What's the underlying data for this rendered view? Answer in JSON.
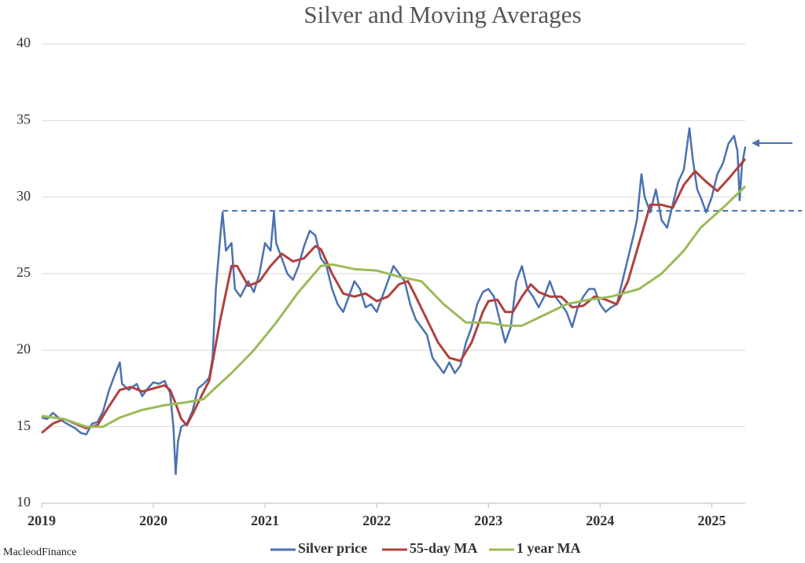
{
  "chart_data": {
    "type": "line",
    "title": "Silver and Moving Averages",
    "source": "MacleodFinance",
    "xlim": [
      2019,
      2025.3
    ],
    "xticks": [
      2019,
      2020,
      2021,
      2022,
      2023,
      2024,
      2025
    ],
    "ylim": [
      10,
      40
    ],
    "yticks": [
      10,
      15,
      20,
      25,
      30,
      35,
      40
    ],
    "grid": true,
    "legend": "bottom",
    "reference_line": {
      "value": 29.1,
      "x_start": 2020.62,
      "color": "#4a72b0"
    },
    "series": [
      {
        "name": "Silver price",
        "color": "#4a72b0",
        "x": [
          2019.0,
          2019.05,
          2019.1,
          2019.15,
          2019.2,
          2019.25,
          2019.3,
          2019.35,
          2019.4,
          2019.45,
          2019.5,
          2019.55,
          2019.6,
          2019.65,
          2019.7,
          2019.72,
          2019.78,
          2019.85,
          2019.9,
          2019.95,
          2020.0,
          2020.05,
          2020.1,
          2020.15,
          2020.18,
          2020.2,
          2020.22,
          2020.25,
          2020.3,
          2020.35,
          2020.4,
          2020.45,
          2020.5,
          2020.53,
          2020.56,
          2020.6,
          2020.62,
          2020.65,
          2020.7,
          2020.73,
          2020.78,
          2020.85,
          2020.9,
          2020.95,
          2021.0,
          2021.05,
          2021.08,
          2021.1,
          2021.15,
          2021.2,
          2021.25,
          2021.3,
          2021.35,
          2021.4,
          2021.45,
          2021.5,
          2021.55,
          2021.6,
          2021.65,
          2021.7,
          2021.75,
          2021.8,
          2021.85,
          2021.9,
          2021.95,
          2022.0,
          2022.05,
          2022.1,
          2022.15,
          2022.2,
          2022.25,
          2022.3,
          2022.35,
          2022.4,
          2022.45,
          2022.5,
          2022.55,
          2022.6,
          2022.65,
          2022.7,
          2022.75,
          2022.8,
          2022.85,
          2022.9,
          2022.95,
          2023.0,
          2023.05,
          2023.1,
          2023.15,
          2023.2,
          2023.25,
          2023.3,
          2023.35,
          2023.4,
          2023.45,
          2023.5,
          2023.55,
          2023.6,
          2023.65,
          2023.7,
          2023.75,
          2023.8,
          2023.85,
          2023.9,
          2023.95,
          2024.0,
          2024.05,
          2024.1,
          2024.15,
          2024.2,
          2024.25,
          2024.3,
          2024.33,
          2024.37,
          2024.4,
          2024.45,
          2024.5,
          2024.55,
          2024.6,
          2024.65,
          2024.7,
          2024.75,
          2024.8,
          2024.83,
          2024.87,
          2024.9,
          2024.95,
          2025.0,
          2025.05,
          2025.1,
          2025.15,
          2025.2,
          2025.23,
          2025.25,
          2025.27,
          2025.3
        ],
        "values": [
          15.6,
          15.5,
          15.9,
          15.6,
          15.3,
          15.1,
          14.9,
          14.6,
          14.5,
          15.2,
          15.3,
          16.0,
          17.3,
          18.3,
          19.2,
          17.8,
          17.4,
          17.8,
          17.0,
          17.5,
          17.9,
          17.8,
          18.0,
          17.2,
          15.0,
          11.9,
          14.0,
          15.0,
          15.2,
          16.0,
          17.5,
          17.8,
          18.2,
          19.5,
          24.0,
          27.5,
          29.0,
          26.5,
          27.0,
          24.0,
          23.5,
          24.5,
          23.8,
          25.0,
          27.0,
          26.5,
          29.0,
          27.0,
          26.0,
          25.0,
          24.6,
          25.5,
          26.8,
          27.8,
          27.5,
          26.0,
          25.5,
          24.0,
          23.0,
          22.5,
          23.5,
          24.5,
          24.0,
          22.8,
          23.0,
          22.5,
          23.5,
          24.5,
          25.5,
          25.0,
          24.5,
          23.0,
          22.0,
          21.5,
          21.0,
          19.5,
          19.0,
          18.5,
          19.2,
          18.5,
          19.0,
          20.5,
          21.5,
          23.0,
          23.8,
          24.0,
          23.5,
          22.0,
          20.5,
          21.5,
          24.5,
          25.5,
          24.0,
          23.5,
          22.8,
          23.5,
          24.5,
          23.5,
          23.0,
          22.5,
          21.5,
          22.8,
          23.5,
          24.0,
          24.0,
          23.0,
          22.5,
          22.8,
          23.0,
          24.5,
          26.0,
          27.5,
          28.5,
          31.5,
          30.0,
          29.0,
          30.5,
          28.5,
          28.0,
          29.5,
          31.0,
          31.8,
          34.5,
          32.5,
          30.5,
          30.0,
          29.0,
          30.0,
          31.5,
          32.2,
          33.5,
          34.0,
          33.0,
          29.8,
          32.0,
          33.3
        ]
      },
      {
        "name": "55-day MA",
        "color": "#b0413e",
        "x": [
          2019.0,
          2019.1,
          2019.2,
          2019.3,
          2019.4,
          2019.5,
          2019.6,
          2019.7,
          2019.8,
          2019.9,
          2020.0,
          2020.1,
          2020.15,
          2020.2,
          2020.25,
          2020.3,
          2020.35,
          2020.45,
          2020.5,
          2020.6,
          2020.7,
          2020.75,
          2020.85,
          2020.95,
          2021.05,
          2021.15,
          2021.25,
          2021.35,
          2021.45,
          2021.5,
          2021.6,
          2021.7,
          2021.8,
          2021.9,
          2022.0,
          2022.1,
          2022.2,
          2022.28,
          2022.35,
          2022.45,
          2022.55,
          2022.65,
          2022.75,
          2022.85,
          2022.95,
          2023.0,
          2023.08,
          2023.15,
          2023.22,
          2023.3,
          2023.38,
          2023.45,
          2023.55,
          2023.65,
          2023.75,
          2023.85,
          2023.95,
          2024.05,
          2024.15,
          2024.25,
          2024.35,
          2024.45,
          2024.55,
          2024.65,
          2024.75,
          2024.85,
          2024.95,
          2025.05,
          2025.15,
          2025.3
        ],
        "values": [
          14.6,
          15.2,
          15.5,
          15.2,
          14.9,
          15.1,
          16.3,
          17.4,
          17.6,
          17.3,
          17.5,
          17.7,
          17.4,
          16.5,
          15.5,
          15.1,
          15.8,
          17.3,
          18.0,
          22.0,
          25.5,
          25.5,
          24.2,
          24.5,
          25.5,
          26.3,
          25.8,
          26.0,
          26.8,
          26.6,
          25.0,
          23.7,
          23.5,
          23.7,
          23.2,
          23.5,
          24.3,
          24.5,
          23.5,
          22.0,
          20.5,
          19.5,
          19.3,
          20.5,
          22.5,
          23.2,
          23.3,
          22.5,
          22.5,
          23.5,
          24.3,
          23.8,
          23.5,
          23.5,
          22.8,
          22.9,
          23.5,
          23.3,
          23.0,
          24.5,
          27.0,
          29.5,
          29.5,
          29.3,
          30.8,
          31.7,
          31.0,
          30.4,
          31.2,
          32.5
        ]
      },
      {
        "name": "1 year MA",
        "color": "#9bbb59",
        "x": [
          2019.0,
          2019.2,
          2019.4,
          2019.55,
          2019.7,
          2019.9,
          2020.1,
          2020.3,
          2020.45,
          2020.55,
          2020.7,
          2020.9,
          2021.1,
          2021.3,
          2021.5,
          2021.6,
          2021.8,
          2022.0,
          2022.2,
          2022.4,
          2022.6,
          2022.8,
          2023.0,
          2023.15,
          2023.3,
          2023.5,
          2023.7,
          2023.9,
          2024.1,
          2024.35,
          2024.55,
          2024.75,
          2024.9,
          2025.1,
          2025.3
        ],
        "values": [
          15.7,
          15.5,
          15.0,
          15.0,
          15.6,
          16.1,
          16.4,
          16.6,
          16.8,
          17.5,
          18.5,
          20.0,
          21.8,
          23.8,
          25.5,
          25.6,
          25.3,
          25.2,
          24.8,
          24.5,
          23.0,
          21.8,
          21.8,
          21.6,
          21.6,
          22.3,
          23.0,
          23.3,
          23.5,
          24.0,
          25.0,
          26.5,
          28.0,
          29.3,
          30.7
        ]
      }
    ]
  }
}
